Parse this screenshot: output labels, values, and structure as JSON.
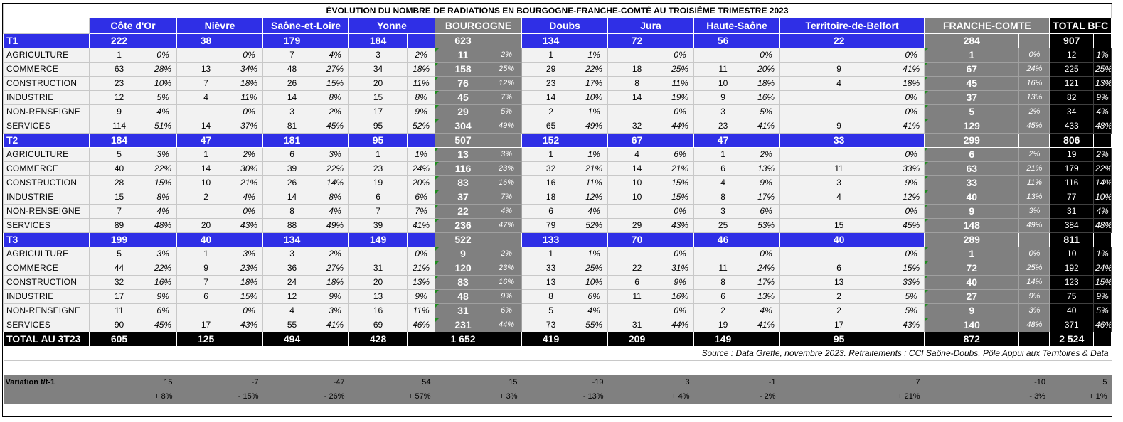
{
  "title": "ÉVOLUTION DU NOMBRE DE RADIATIONS EN BOURGOGNE-FRANCHE-COMTÉ AU TROISIÈME TRIMESTRE 2023",
  "columns": {
    "cote_dor": "Côte d'Or",
    "nievre": "Nièvre",
    "saone_loire": "Saône-et-Loire",
    "yonne": "Yonne",
    "bourgogne": "BOURGOGNE",
    "doubs": "Doubs",
    "jura": "Jura",
    "haute_saone": "Haute-Saône",
    "belfort": "Territoire-de-Belfort",
    "franche_comte": "FRANCHE-COMTE",
    "total_bfc": "TOTAL BFC"
  },
  "quarters": [
    {
      "label": "T1",
      "totals": [
        "222",
        "38",
        "179",
        "184",
        "623",
        "134",
        "72",
        "56",
        "22",
        "284",
        "907"
      ],
      "rows": [
        {
          "label": "AGRICULTURE",
          "cells": [
            [
              "1",
              "0%"
            ],
            [
              "",
              "0%"
            ],
            [
              "7",
              "4%"
            ],
            [
              "3",
              "2%"
            ],
            [
              "11",
              "2%"
            ],
            [
              "1",
              "1%"
            ],
            [
              "",
              "0%"
            ],
            [
              "",
              "0%"
            ],
            [
              "",
              "0%"
            ],
            [
              "1",
              "0%"
            ],
            [
              "12",
              "1%"
            ]
          ]
        },
        {
          "label": "COMMERCE",
          "cells": [
            [
              "63",
              "28%"
            ],
            [
              "13",
              "34%"
            ],
            [
              "48",
              "27%"
            ],
            [
              "34",
              "18%"
            ],
            [
              "158",
              "25%"
            ],
            [
              "29",
              "22%"
            ],
            [
              "18",
              "25%"
            ],
            [
              "11",
              "20%"
            ],
            [
              "9",
              "41%"
            ],
            [
              "67",
              "24%"
            ],
            [
              "225",
              "25%"
            ]
          ]
        },
        {
          "label": "CONSTRUCTION",
          "cells": [
            [
              "23",
              "10%"
            ],
            [
              "7",
              "18%"
            ],
            [
              "26",
              "15%"
            ],
            [
              "20",
              "11%"
            ],
            [
              "76",
              "12%"
            ],
            [
              "23",
              "17%"
            ],
            [
              "8",
              "11%"
            ],
            [
              "10",
              "18%"
            ],
            [
              "4",
              "18%"
            ],
            [
              "45",
              "16%"
            ],
            [
              "121",
              "13%"
            ]
          ]
        },
        {
          "label": "INDUSTRIE",
          "cells": [
            [
              "12",
              "5%"
            ],
            [
              "4",
              "11%"
            ],
            [
              "14",
              "8%"
            ],
            [
              "15",
              "8%"
            ],
            [
              "45",
              "7%"
            ],
            [
              "14",
              "10%"
            ],
            [
              "14",
              "19%"
            ],
            [
              "9",
              "16%"
            ],
            [
              "",
              "0%"
            ],
            [
              "37",
              "13%"
            ],
            [
              "82",
              "9%"
            ]
          ]
        },
        {
          "label": "NON-RENSEIGNE",
          "cells": [
            [
              "9",
              "4%"
            ],
            [
              "",
              "0%"
            ],
            [
              "3",
              "2%"
            ],
            [
              "17",
              "9%"
            ],
            [
              "29",
              "5%"
            ],
            [
              "2",
              "1%"
            ],
            [
              "",
              "0%"
            ],
            [
              "3",
              "5%"
            ],
            [
              "",
              "0%"
            ],
            [
              "5",
              "2%"
            ],
            [
              "34",
              "4%"
            ]
          ]
        },
        {
          "label": "SERVICES",
          "cells": [
            [
              "114",
              "51%"
            ],
            [
              "14",
              "37%"
            ],
            [
              "81",
              "45%"
            ],
            [
              "95",
              "52%"
            ],
            [
              "304",
              "49%"
            ],
            [
              "65",
              "49%"
            ],
            [
              "32",
              "44%"
            ],
            [
              "23",
              "41%"
            ],
            [
              "9",
              "41%"
            ],
            [
              "129",
              "45%"
            ],
            [
              "433",
              "48%"
            ]
          ]
        }
      ]
    },
    {
      "label": "T2",
      "totals": [
        "184",
        "47",
        "181",
        "95",
        "507",
        "152",
        "67",
        "47",
        "33",
        "299",
        "806"
      ],
      "rows": [
        {
          "label": "AGRICULTURE",
          "cells": [
            [
              "5",
              "3%"
            ],
            [
              "1",
              "2%"
            ],
            [
              "6",
              "3%"
            ],
            [
              "1",
              "1%"
            ],
            [
              "13",
              "3%"
            ],
            [
              "1",
              "1%"
            ],
            [
              "4",
              "6%"
            ],
            [
              "1",
              "2%"
            ],
            [
              "",
              "0%"
            ],
            [
              "6",
              "2%"
            ],
            [
              "19",
              "2%"
            ]
          ]
        },
        {
          "label": "COMMERCE",
          "cells": [
            [
              "40",
              "22%"
            ],
            [
              "14",
              "30%"
            ],
            [
              "39",
              "22%"
            ],
            [
              "23",
              "24%"
            ],
            [
              "116",
              "23%"
            ],
            [
              "32",
              "21%"
            ],
            [
              "14",
              "21%"
            ],
            [
              "6",
              "13%"
            ],
            [
              "11",
              "33%"
            ],
            [
              "63",
              "21%"
            ],
            [
              "179",
              "22%"
            ]
          ]
        },
        {
          "label": "CONSTRUCTION",
          "cells": [
            [
              "28",
              "15%"
            ],
            [
              "10",
              "21%"
            ],
            [
              "26",
              "14%"
            ],
            [
              "19",
              "20%"
            ],
            [
              "83",
              "16%"
            ],
            [
              "16",
              "11%"
            ],
            [
              "10",
              "15%"
            ],
            [
              "4",
              "9%"
            ],
            [
              "3",
              "9%"
            ],
            [
              "33",
              "11%"
            ],
            [
              "116",
              "14%"
            ]
          ]
        },
        {
          "label": "INDUSTRIE",
          "cells": [
            [
              "15",
              "8%"
            ],
            [
              "2",
              "4%"
            ],
            [
              "14",
              "8%"
            ],
            [
              "6",
              "6%"
            ],
            [
              "37",
              "7%"
            ],
            [
              "18",
              "12%"
            ],
            [
              "10",
              "15%"
            ],
            [
              "8",
              "17%"
            ],
            [
              "4",
              "12%"
            ],
            [
              "40",
              "13%"
            ],
            [
              "77",
              "10%"
            ]
          ]
        },
        {
          "label": "NON-RENSEIGNE",
          "cells": [
            [
              "7",
              "4%"
            ],
            [
              "",
              "0%"
            ],
            [
              "8",
              "4%"
            ],
            [
              "7",
              "7%"
            ],
            [
              "22",
              "4%"
            ],
            [
              "6",
              "4%"
            ],
            [
              "",
              "0%"
            ],
            [
              "3",
              "6%"
            ],
            [
              "",
              "0%"
            ],
            [
              "9",
              "3%"
            ],
            [
              "31",
              "4%"
            ]
          ]
        },
        {
          "label": "SERVICES",
          "cells": [
            [
              "89",
              "48%"
            ],
            [
              "20",
              "43%"
            ],
            [
              "88",
              "49%"
            ],
            [
              "39",
              "41%"
            ],
            [
              "236",
              "47%"
            ],
            [
              "79",
              "52%"
            ],
            [
              "29",
              "43%"
            ],
            [
              "25",
              "53%"
            ],
            [
              "15",
              "45%"
            ],
            [
              "148",
              "49%"
            ],
            [
              "384",
              "48%"
            ]
          ]
        }
      ]
    },
    {
      "label": "T3",
      "totals": [
        "199",
        "40",
        "134",
        "149",
        "522",
        "133",
        "70",
        "46",
        "40",
        "289",
        "811"
      ],
      "rows": [
        {
          "label": "AGRICULTURE",
          "cells": [
            [
              "5",
              "3%"
            ],
            [
              "1",
              "3%"
            ],
            [
              "3",
              "2%"
            ],
            [
              "",
              "0%"
            ],
            [
              "9",
              "2%"
            ],
            [
              "1",
              "1%"
            ],
            [
              "",
              "0%"
            ],
            [
              "",
              "0%"
            ],
            [
              "",
              "0%"
            ],
            [
              "1",
              "0%"
            ],
            [
              "10",
              "1%"
            ]
          ]
        },
        {
          "label": "COMMERCE",
          "cells": [
            [
              "44",
              "22%"
            ],
            [
              "9",
              "23%"
            ],
            [
              "36",
              "27%"
            ],
            [
              "31",
              "21%"
            ],
            [
              "120",
              "23%"
            ],
            [
              "33",
              "25%"
            ],
            [
              "22",
              "31%"
            ],
            [
              "11",
              "24%"
            ],
            [
              "6",
              "15%"
            ],
            [
              "72",
              "25%"
            ],
            [
              "192",
              "24%"
            ]
          ]
        },
        {
          "label": "CONSTRUCTION",
          "cells": [
            [
              "32",
              "16%"
            ],
            [
              "7",
              "18%"
            ],
            [
              "24",
              "18%"
            ],
            [
              "20",
              "13%"
            ],
            [
              "83",
              "16%"
            ],
            [
              "13",
              "10%"
            ],
            [
              "6",
              "9%"
            ],
            [
              "8",
              "17%"
            ],
            [
              "13",
              "33%"
            ],
            [
              "40",
              "14%"
            ],
            [
              "123",
              "15%"
            ]
          ]
        },
        {
          "label": "INDUSTRIE",
          "cells": [
            [
              "17",
              "9%"
            ],
            [
              "6",
              "15%"
            ],
            [
              "12",
              "9%"
            ],
            [
              "13",
              "9%"
            ],
            [
              "48",
              "9%"
            ],
            [
              "8",
              "6%"
            ],
            [
              "11",
              "16%"
            ],
            [
              "6",
              "13%"
            ],
            [
              "2",
              "5%"
            ],
            [
              "27",
              "9%"
            ],
            [
              "75",
              "9%"
            ]
          ]
        },
        {
          "label": "NON-RENSEIGNE",
          "cells": [
            [
              "11",
              "6%"
            ],
            [
              "",
              "0%"
            ],
            [
              "4",
              "3%"
            ],
            [
              "16",
              "11%"
            ],
            [
              "31",
              "6%"
            ],
            [
              "5",
              "4%"
            ],
            [
              "",
              "0%"
            ],
            [
              "2",
              "4%"
            ],
            [
              "2",
              "5%"
            ],
            [
              "9",
              "3%"
            ],
            [
              "40",
              "5%"
            ]
          ]
        },
        {
          "label": "SERVICES",
          "cells": [
            [
              "90",
              "45%"
            ],
            [
              "17",
              "43%"
            ],
            [
              "55",
              "41%"
            ],
            [
              "69",
              "46%"
            ],
            [
              "231",
              "44%"
            ],
            [
              "73",
              "55%"
            ],
            [
              "31",
              "44%"
            ],
            [
              "19",
              "41%"
            ],
            [
              "17",
              "43%"
            ],
            [
              "140",
              "48%"
            ],
            [
              "371",
              "46%"
            ]
          ]
        }
      ]
    }
  ],
  "total": {
    "label": "TOTAL AU 3T23",
    "values": [
      "605",
      "125",
      "494",
      "428",
      "1 652",
      "419",
      "209",
      "149",
      "95",
      "872",
      "2 524"
    ]
  },
  "source": "Source : Data Greffe, novembre 2023. Retraitements : CCI Saône-Doubs, Pôle Appui aux Territoires & Data",
  "variation": {
    "label": "Variation t/t-1",
    "values": [
      "15",
      "-7",
      "-47",
      "54",
      "15",
      "-19",
      "3",
      "-1",
      "7",
      "-10",
      "5"
    ],
    "percents": [
      "+ 8%",
      "- 15%",
      "- 26%",
      "+ 57%",
      "+ 3%",
      "- 13%",
      "+ 4%",
      "- 2%",
      "+ 21%",
      "- 3%",
      "+ 1%"
    ]
  },
  "colors": {
    "blue_header": "#2f2fe6",
    "grey_bourgogne_fc": "#808080",
    "black_total": "#000000",
    "row_background": "#f2f2f2",
    "comment_marker": "#1e8c1e"
  }
}
